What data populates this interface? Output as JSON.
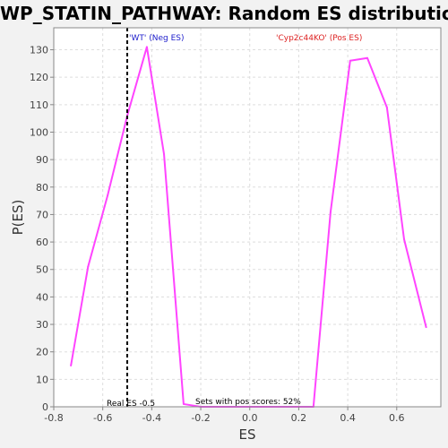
{
  "chart_data": {
    "type": "line",
    "title": "WP_STATIN_PATHWAY: Random ES distribution",
    "xlabel": "ES",
    "ylabel": "P(ES)",
    "xlim": [
      -0.8,
      0.78
    ],
    "ylim": [
      0,
      138
    ],
    "x_ticks": [
      -0.8,
      -0.6,
      -0.4,
      -0.2,
      0.0,
      0.2,
      0.4,
      0.6
    ],
    "x_tick_labels": [
      "-0.8",
      "-0.6",
      "-0.4",
      "-0.2",
      "0.0",
      "0.2",
      "0.4",
      "0.6"
    ],
    "y_ticks": [
      0,
      10,
      20,
      30,
      40,
      50,
      60,
      70,
      80,
      90,
      100,
      110,
      120,
      130
    ],
    "y_tick_labels": [
      "0",
      "10",
      "20",
      "30",
      "40",
      "50",
      "60",
      "70",
      "80",
      "90",
      "100",
      "110",
      "120",
      "130"
    ],
    "grid": true,
    "series": [
      {
        "color": "#ff44ff",
        "x": [
          -0.73,
          -0.66,
          -0.58,
          -0.5,
          -0.42,
          -0.35,
          -0.27,
          -0.2,
          0.26,
          0.33,
          0.41,
          0.48,
          0.56,
          0.63,
          0.72
        ],
        "y": [
          15,
          51,
          77,
          106,
          131,
          92,
          1,
          0,
          0,
          71,
          126,
          127,
          109,
          61,
          29
        ]
      }
    ],
    "real_es": {
      "x": -0.5,
      "label": "Real ES -0.5"
    },
    "annotations": {
      "neg_label": "'WT' (Neg ES)",
      "pos_label": "'Cyp2c44KO' (Pos ES)",
      "pos_scores_label": "Sets with pos scores: 52%"
    },
    "colors": {
      "background": "#f2f2f2",
      "plot_bg": "#ffffff",
      "neg_label": "#2020cc",
      "pos_label": "#dd2222",
      "grid": "#dddddd"
    }
  }
}
